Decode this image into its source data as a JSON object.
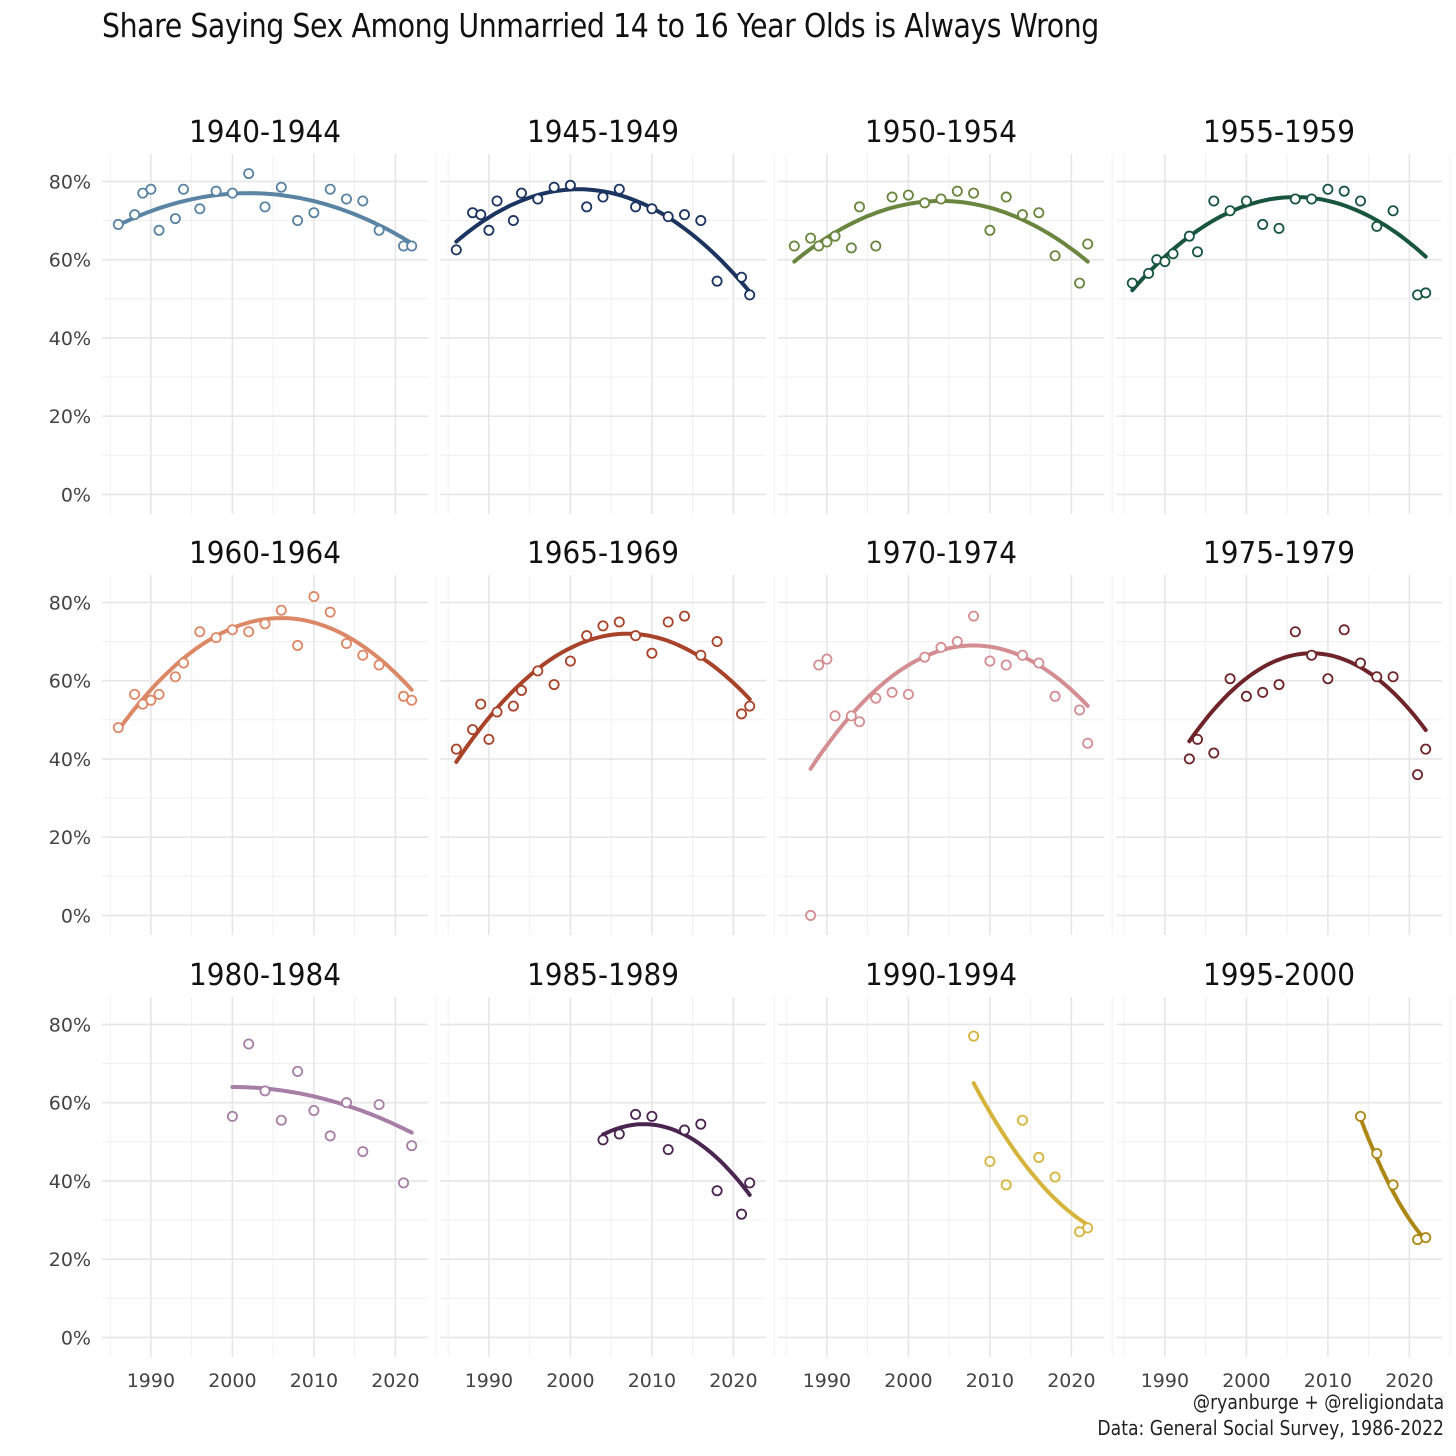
{
  "chart_data": {
    "type": "scatter",
    "title": "Share Saying Sex Among Unmarried 14 to 16 Year Olds is Always Wrong",
    "xlabel": "",
    "ylabel": "",
    "xlim": [
      1984,
      2024
    ],
    "ylim": [
      -5,
      87
    ],
    "x_ticks": [
      1990,
      2000,
      2010,
      2020
    ],
    "y_ticks": [
      0,
      20,
      40,
      60,
      80
    ],
    "y_tick_labels": [
      "0%",
      "20%",
      "40%",
      "60%",
      "80%"
    ],
    "grid": true,
    "legend": "none",
    "panels": [
      {
        "label": "1940-1944",
        "color": "#5a84a3",
        "points": [
          [
            1986,
            69
          ],
          [
            1988,
            71.5
          ],
          [
            1989,
            77
          ],
          [
            1990,
            78
          ],
          [
            1991,
            67.5
          ],
          [
            1993,
            70.5
          ],
          [
            1994,
            78
          ],
          [
            1996,
            73
          ],
          [
            1998,
            77.5
          ],
          [
            2000,
            77
          ],
          [
            2002,
            82
          ],
          [
            2004,
            73.5
          ],
          [
            2006,
            78.5
          ],
          [
            2008,
            70
          ],
          [
            2010,
            72
          ],
          [
            2012,
            78
          ],
          [
            2014,
            75.5
          ],
          [
            2016,
            75
          ],
          [
            2018,
            67.5
          ],
          [
            2021,
            63.5
          ],
          [
            2022,
            63.5
          ]
        ],
        "trend_coef": [
          77,
          0,
          -0.032
        ],
        "trend_center": 2002,
        "trend_range": [
          1986,
          2022
        ]
      },
      {
        "label": "1945-1949",
        "color": "#1b3460",
        "points": [
          [
            1986,
            62.5
          ],
          [
            1988,
            72
          ],
          [
            1989,
            71.5
          ],
          [
            1990,
            67.5
          ],
          [
            1991,
            75
          ],
          [
            1993,
            70
          ],
          [
            1994,
            77
          ],
          [
            1996,
            75.5
          ],
          [
            1998,
            78.5
          ],
          [
            2000,
            79
          ],
          [
            2002,
            73.5
          ],
          [
            2004,
            76
          ],
          [
            2006,
            78
          ],
          [
            2008,
            73.5
          ],
          [
            2010,
            73
          ],
          [
            2012,
            71
          ],
          [
            2014,
            71.5
          ],
          [
            2016,
            70
          ],
          [
            2018,
            54.5
          ],
          [
            2021,
            55.5
          ],
          [
            2022,
            51
          ]
        ],
        "trend_coef": [
          78,
          0,
          -0.0595
        ],
        "trend_center": 2001,
        "trend_range": [
          1986,
          2022
        ]
      },
      {
        "label": "1950-1954",
        "color": "#6a853e",
        "points": [
          [
            1986,
            63.5
          ],
          [
            1988,
            65.5
          ],
          [
            1989,
            63.5
          ],
          [
            1990,
            64.5
          ],
          [
            1991,
            66
          ],
          [
            1993,
            63
          ],
          [
            1994,
            73.5
          ],
          [
            1996,
            63.5
          ],
          [
            1998,
            76
          ],
          [
            2000,
            76.5
          ],
          [
            2002,
            74.5
          ],
          [
            2004,
            75.5
          ],
          [
            2006,
            77.5
          ],
          [
            2008,
            77
          ],
          [
            2010,
            67.5
          ],
          [
            2012,
            76
          ],
          [
            2014,
            71.5
          ],
          [
            2016,
            72
          ],
          [
            2018,
            61
          ],
          [
            2021,
            54
          ],
          [
            2022,
            64
          ]
        ],
        "trend_coef": [
          75,
          0,
          -0.0478
        ],
        "trend_center": 2004,
        "trend_range": [
          1986,
          2022
        ]
      },
      {
        "label": "1955-1959",
        "color": "#17553e",
        "points": [
          [
            1986,
            54
          ],
          [
            1988,
            56.5
          ],
          [
            1989,
            60
          ],
          [
            1990,
            59.5
          ],
          [
            1991,
            61.5
          ],
          [
            1993,
            66
          ],
          [
            1994,
            62
          ],
          [
            1996,
            75
          ],
          [
            1998,
            72.5
          ],
          [
            2000,
            75
          ],
          [
            2002,
            69
          ],
          [
            2004,
            68
          ],
          [
            2006,
            75.5
          ],
          [
            2008,
            75.5
          ],
          [
            2010,
            78
          ],
          [
            2012,
            77.5
          ],
          [
            2014,
            75
          ],
          [
            2016,
            68.5
          ],
          [
            2018,
            72.5
          ],
          [
            2021,
            51
          ],
          [
            2022,
            51.5
          ]
        ],
        "trend_coef": [
          76,
          0,
          -0.0595
        ],
        "trend_center": 2006,
        "trend_range": [
          1986,
          2022
        ]
      },
      {
        "label": "1960-1964",
        "color": "#dc8866",
        "points": [
          [
            1986,
            48
          ],
          [
            1988,
            56.5
          ],
          [
            1989,
            54
          ],
          [
            1990,
            55
          ],
          [
            1991,
            56.5
          ],
          [
            1993,
            61
          ],
          [
            1994,
            64.5
          ],
          [
            1996,
            72.5
          ],
          [
            1998,
            71
          ],
          [
            2000,
            73
          ],
          [
            2002,
            72.5
          ],
          [
            2004,
            74.5
          ],
          [
            2006,
            78
          ],
          [
            2008,
            69
          ],
          [
            2010,
            81.5
          ],
          [
            2012,
            77.5
          ],
          [
            2014,
            69.5
          ],
          [
            2016,
            66.5
          ],
          [
            2018,
            64
          ],
          [
            2021,
            56
          ],
          [
            2022,
            55
          ]
        ],
        "trend_coef": [
          76,
          0,
          -0.0716
        ],
        "trend_center": 2006,
        "trend_range": [
          1986,
          2022
        ]
      },
      {
        "label": "1965-1969",
        "color": "#a8432a",
        "points": [
          [
            1986,
            42.5
          ],
          [
            1988,
            47.5
          ],
          [
            1989,
            54
          ],
          [
            1990,
            45
          ],
          [
            1991,
            52
          ],
          [
            1993,
            53.5
          ],
          [
            1994,
            57.5
          ],
          [
            1996,
            62.5
          ],
          [
            1998,
            59
          ],
          [
            2000,
            65
          ],
          [
            2002,
            71.5
          ],
          [
            2004,
            74
          ],
          [
            2006,
            75
          ],
          [
            2008,
            71.5
          ],
          [
            2010,
            67
          ],
          [
            2012,
            75
          ],
          [
            2014,
            76.5
          ],
          [
            2016,
            66.5
          ],
          [
            2018,
            70
          ],
          [
            2021,
            51.5
          ],
          [
            2022,
            53.5
          ]
        ],
        "trend_coef": [
          72,
          0,
          -0.0743
        ],
        "trend_center": 2007,
        "trend_range": [
          1986,
          2022
        ]
      },
      {
        "label": "1970-1974",
        "color": "#d48e91",
        "points": [
          [
            1988,
            0
          ],
          [
            1989,
            64
          ],
          [
            1990,
            65.5
          ],
          [
            1991,
            51
          ],
          [
            1993,
            51
          ],
          [
            1994,
            49.5
          ],
          [
            1996,
            55.5
          ],
          [
            1998,
            57
          ],
          [
            2000,
            56.5
          ],
          [
            2002,
            66
          ],
          [
            2004,
            68.5
          ],
          [
            2006,
            70
          ],
          [
            2008,
            76.5
          ],
          [
            2010,
            65
          ],
          [
            2012,
            64
          ],
          [
            2014,
            66.5
          ],
          [
            2016,
            64.5
          ],
          [
            2018,
            56
          ],
          [
            2021,
            52.5
          ],
          [
            2022,
            44
          ]
        ],
        "trend_coef": [
          69,
          0,
          -0.0788
        ],
        "trend_center": 2008,
        "trend_range": [
          1988,
          2022
        ]
      },
      {
        "label": "1975-1979",
        "color": "#6e2428",
        "points": [
          [
            1993,
            40
          ],
          [
            1994,
            45
          ],
          [
            1996,
            41.5
          ],
          [
            1998,
            60.5
          ],
          [
            2000,
            56
          ],
          [
            2002,
            57
          ],
          [
            2004,
            59
          ],
          [
            2006,
            72.5
          ],
          [
            2008,
            66.5
          ],
          [
            2010,
            60.5
          ],
          [
            2012,
            73
          ],
          [
            2014,
            64.5
          ],
          [
            2016,
            61
          ],
          [
            2018,
            61
          ],
          [
            2021,
            36
          ],
          [
            2022,
            42.5
          ]
        ],
        "trend_coef": [
          67,
          0,
          -0.1
        ],
        "trend_center": 2008,
        "trend_range": [
          1993,
          2022
        ]
      },
      {
        "label": "1980-1984",
        "color": "#a77ea6",
        "points": [
          [
            2000,
            56.5
          ],
          [
            2002,
            75
          ],
          [
            2004,
            63
          ],
          [
            2006,
            55.5
          ],
          [
            2008,
            68
          ],
          [
            2010,
            58
          ],
          [
            2012,
            51.5
          ],
          [
            2014,
            60
          ],
          [
            2016,
            47.5
          ],
          [
            2018,
            59.5
          ],
          [
            2021,
            39.5
          ],
          [
            2022,
            49
          ]
        ],
        "trend_coef": [
          64,
          0,
          -0.0241
        ],
        "trend_center": 2000,
        "trend_range": [
          2000,
          2022
        ]
      },
      {
        "label": "1985-1989",
        "color": "#4a2550",
        "points": [
          [
            2004,
            50.5
          ],
          [
            2006,
            52
          ],
          [
            2008,
            57
          ],
          [
            2010,
            56.5
          ],
          [
            2012,
            48
          ],
          [
            2014,
            53
          ],
          [
            2016,
            54.5
          ],
          [
            2018,
            37.5
          ],
          [
            2021,
            31.5
          ],
          [
            2022,
            39.5
          ]
        ],
        "trend_coef": [
          54.5,
          0,
          -0.1069
        ],
        "trend_center": 2009,
        "trend_range": [
          2004,
          2022
        ]
      },
      {
        "label": "1990-1994",
        "color": "#d6b43c",
        "points": [
          [
            2008,
            77
          ],
          [
            2010,
            45
          ],
          [
            2012,
            39
          ],
          [
            2014,
            55.5
          ],
          [
            2016,
            46
          ],
          [
            2018,
            41
          ],
          [
            2021,
            27
          ],
          [
            2022,
            28
          ]
        ],
        "trend_coef": [
          65,
          -3.9,
          0.094
        ],
        "trend_center": 2008,
        "trend_range": [
          2008,
          2022
        ]
      },
      {
        "label": "1995-2000",
        "color": "#ad8714",
        "points": [
          [
            2014,
            56.5
          ],
          [
            2016,
            47
          ],
          [
            2018,
            39
          ],
          [
            2021,
            25
          ],
          [
            2022,
            25.5
          ]
        ],
        "trend_coef": [
          56,
          -5.5,
          0.2
        ],
        "trend_center": 2014,
        "trend_range": [
          2014,
          2022
        ]
      }
    ]
  },
  "captions": {
    "line1": "@ryanburge + @religiondata",
    "line2": "Data: General Social Survey, 1986-2022"
  }
}
